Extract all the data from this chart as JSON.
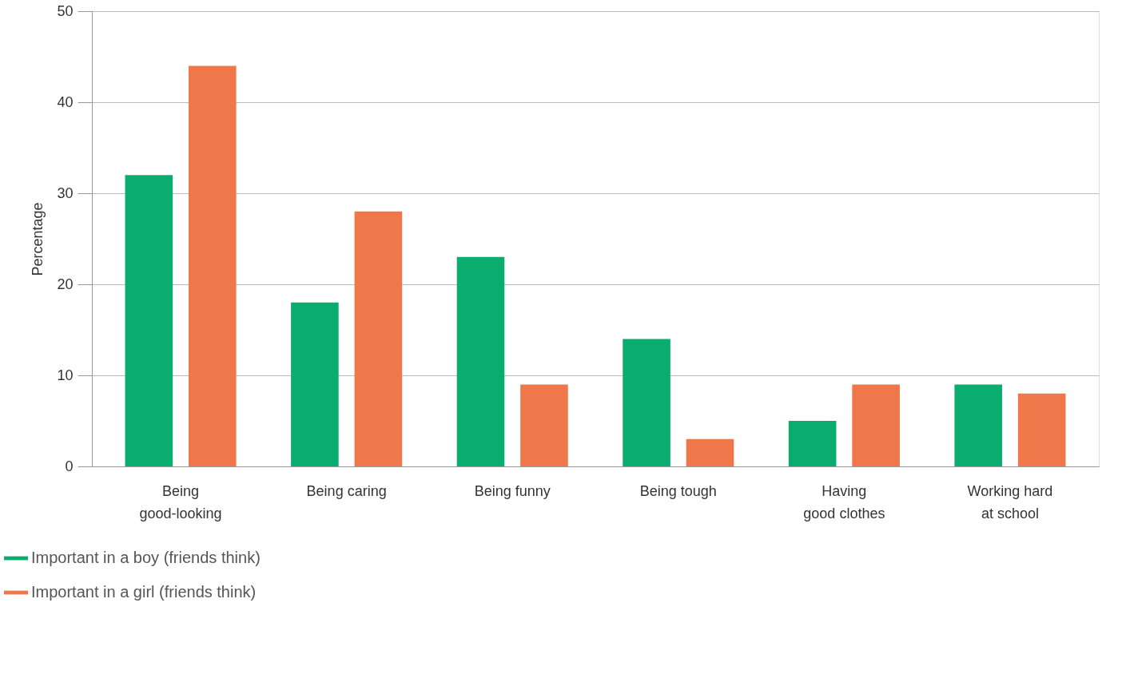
{
  "chart_data": {
    "type": "bar",
    "ylabel": "Percentage",
    "categories": [
      "Being\ngood-looking",
      "Being caring",
      "Being funny",
      "Being tough",
      "Having\ngood clothes",
      "Working hard\nat school"
    ],
    "series": [
      {
        "name": "Important in a boy (friends think)",
        "color": "#0aad6e",
        "values": [
          32,
          18,
          23,
          14,
          5,
          9
        ]
      },
      {
        "name": "Important in a girl (friends think)",
        "color": "#ef774a",
        "values": [
          44,
          28,
          9,
          3,
          9,
          8
        ]
      }
    ],
    "ylim": [
      0,
      50
    ],
    "yticks": [
      0,
      10,
      20,
      30,
      40,
      50
    ],
    "grid": "y",
    "legend": "bottom left"
  }
}
